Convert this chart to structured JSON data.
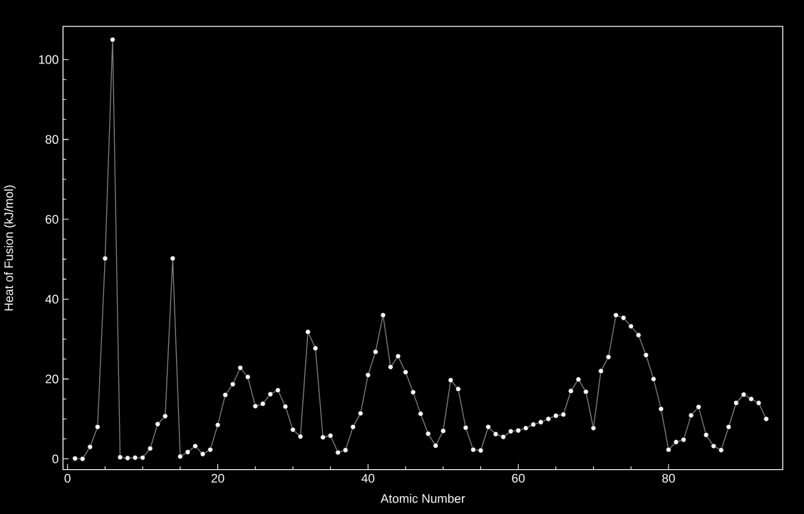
{
  "chart_data": {
    "type": "line",
    "xlabel": "Atomic Number",
    "ylabel": "Heat of Fusion (kJ/mol)",
    "x": [
      1,
      2,
      3,
      4,
      5,
      6,
      7,
      8,
      9,
      10,
      11,
      12,
      13,
      14,
      15,
      16,
      17,
      18,
      19,
      20,
      21,
      22,
      23,
      24,
      25,
      26,
      27,
      28,
      29,
      30,
      31,
      32,
      33,
      34,
      35,
      36,
      37,
      38,
      39,
      40,
      41,
      42,
      43,
      44,
      45,
      46,
      47,
      48,
      49,
      50,
      51,
      52,
      53,
      54,
      55,
      56,
      57,
      58,
      59,
      60,
      61,
      62,
      63,
      64,
      65,
      66,
      67,
      68,
      69,
      70,
      71,
      72,
      73,
      74,
      75,
      76,
      77,
      78,
      79,
      80,
      81,
      82,
      83,
      84,
      85,
      86,
      87,
      88,
      89,
      90,
      91,
      92,
      93
    ],
    "series": [
      {
        "color": "#808080",
        "values": [
          0.1,
          0,
          3,
          8,
          50.2,
          105,
          0.4,
          0.2,
          0.3,
          0.3,
          2.6,
          8.7,
          10.7,
          50.2,
          0.6,
          1.7,
          3.2,
          1.2,
          2.3,
          8.5,
          16,
          18.7,
          22.8,
          20.5,
          13.2,
          13.8,
          16.2,
          17.2,
          13.1,
          7.3,
          5.6,
          31.8,
          27.7,
          5.4,
          5.8,
          1.6,
          2.2,
          8,
          11.4,
          21,
          26.8,
          36,
          23,
          25.7,
          21.7,
          16.7,
          11.3,
          6.3,
          3.3,
          7,
          19.7,
          17.5,
          7.8,
          2.3,
          2.1,
          8,
          6.2,
          5.5,
          6.9,
          7.1,
          7.7,
          8.6,
          9.2,
          10,
          10.8,
          11.1,
          17,
          19.9,
          16.8,
          7.7,
          22,
          25.5,
          36,
          35.3,
          33.2,
          31,
          26,
          20,
          12.5,
          2.3,
          4.2,
          4.8,
          10.9,
          13,
          6,
          3.2,
          2.2,
          8,
          14,
          16.1,
          15,
          14,
          10
        ]
      }
    ],
    "marker": "circle",
    "line_style": "solid",
    "xlim": [
      -0.6,
      95.2
    ],
    "ylim": [
      -2.7,
      108.3
    ],
    "xticks": [
      0,
      20,
      40,
      60,
      80
    ],
    "yticks": [
      0,
      20,
      40,
      60,
      80,
      100
    ]
  }
}
